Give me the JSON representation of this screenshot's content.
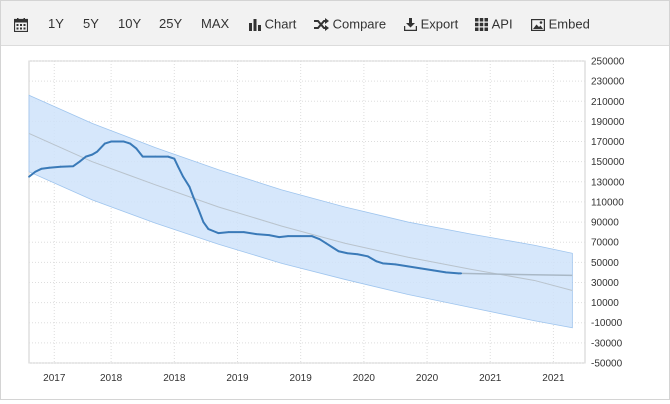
{
  "toolbar": {
    "calendar_icon": "calendar-icon",
    "ranges": [
      "1Y",
      "5Y",
      "10Y",
      "25Y",
      "MAX"
    ],
    "chart_label": "Chart",
    "compare_label": "Compare",
    "export_label": "Export",
    "api_label": "API",
    "embed_label": "Embed"
  },
  "colors": {
    "line": "#3a7ab8",
    "band": "#cfe3fa",
    "band_edge": "#9fc5ee",
    "forecast": "#a9b8c6",
    "trend": "#b9c3cc"
  },
  "chart_data": {
    "type": "line",
    "y_ticks": [
      -50000,
      -30000,
      -10000,
      10000,
      30000,
      50000,
      70000,
      90000,
      110000,
      130000,
      150000,
      170000,
      190000,
      210000,
      230000,
      250000
    ],
    "y_tick_labels": [
      "-50000",
      "-30000",
      "-10000",
      "10000",
      "30000",
      "50000",
      "70000",
      "90000",
      "110000",
      "130000",
      "150000",
      "170000",
      "190000",
      "210000",
      "230000",
      "250000"
    ],
    "ylim": [
      -50000,
      250000
    ],
    "xlim": [
      2016.7,
      2021.1
    ],
    "x_ticks": [
      2016.9,
      2017.35,
      2017.85,
      2018.35,
      2018.85,
      2019.35,
      2019.85,
      2020.35,
      2020.85
    ],
    "x_tick_labels": [
      "2017",
      "2018",
      "2018",
      "2019",
      "2019",
      "2020",
      "2020",
      "2021",
      "2021"
    ],
    "grid": true,
    "series": [
      {
        "values": [
          [
            2016.7,
            135000
          ],
          [
            2016.75,
            140000
          ],
          [
            2016.8,
            143000
          ],
          [
            2016.86,
            144000
          ],
          [
            2016.95,
            145000
          ],
          [
            2017.05,
            145500
          ],
          [
            2017.1,
            150000
          ],
          [
            2017.15,
            155000
          ],
          [
            2017.2,
            157000
          ],
          [
            2017.24,
            160000
          ],
          [
            2017.3,
            168000
          ],
          [
            2017.35,
            170000
          ],
          [
            2017.45,
            170000
          ],
          [
            2017.5,
            168000
          ],
          [
            2017.55,
            163000
          ],
          [
            2017.6,
            155000
          ],
          [
            2017.7,
            155000
          ],
          [
            2017.8,
            155000
          ],
          [
            2017.85,
            153000
          ],
          [
            2017.88,
            145000
          ],
          [
            2017.92,
            135000
          ],
          [
            2017.97,
            125000
          ],
          [
            2018.0,
            115000
          ],
          [
            2018.04,
            103000
          ],
          [
            2018.08,
            90000
          ],
          [
            2018.12,
            83000
          ],
          [
            2018.16,
            81000
          ],
          [
            2018.2,
            79000
          ],
          [
            2018.28,
            80000
          ],
          [
            2018.4,
            80000
          ],
          [
            2018.5,
            78000
          ],
          [
            2018.6,
            77000
          ],
          [
            2018.68,
            75000
          ],
          [
            2018.75,
            76000
          ],
          [
            2018.85,
            76000
          ],
          [
            2018.94,
            76000
          ],
          [
            2019.0,
            73000
          ],
          [
            2019.05,
            69000
          ],
          [
            2019.1,
            65000
          ],
          [
            2019.15,
            61000
          ],
          [
            2019.22,
            59000
          ],
          [
            2019.3,
            58000
          ],
          [
            2019.38,
            56000
          ],
          [
            2019.45,
            51000
          ],
          [
            2019.5,
            49000
          ],
          [
            2019.6,
            48000
          ],
          [
            2019.7,
            46000
          ],
          [
            2019.8,
            44000
          ],
          [
            2019.9,
            42000
          ],
          [
            2020.0,
            40000
          ],
          [
            2020.1,
            39000
          ],
          [
            2020.12,
            39000
          ]
        ]
      }
    ],
    "forecast": [
      [
        2020.12,
        39000
      ],
      [
        2020.5,
        38000
      ],
      [
        2021.0,
        37000
      ]
    ],
    "trend": [
      [
        2016.7,
        178000
      ],
      [
        2017.2,
        150000
      ],
      [
        2017.7,
        127000
      ],
      [
        2018.2,
        105000
      ],
      [
        2018.7,
        86000
      ],
      [
        2019.2,
        69000
      ],
      [
        2019.7,
        55000
      ],
      [
        2020.2,
        43000
      ],
      [
        2020.7,
        32000
      ],
      [
        2021.0,
        22000
      ]
    ],
    "band_upper": [
      [
        2016.7,
        216000
      ],
      [
        2017.2,
        188000
      ],
      [
        2017.7,
        164000
      ],
      [
        2018.2,
        142000
      ],
      [
        2018.7,
        122000
      ],
      [
        2019.2,
        105000
      ],
      [
        2019.7,
        90000
      ],
      [
        2020.2,
        78000
      ],
      [
        2020.7,
        67000
      ],
      [
        2021.0,
        59000
      ]
    ],
    "band_lower": [
      [
        2016.7,
        140000
      ],
      [
        2017.2,
        112000
      ],
      [
        2017.7,
        89000
      ],
      [
        2018.2,
        68000
      ],
      [
        2018.7,
        49000
      ],
      [
        2019.2,
        33000
      ],
      [
        2019.7,
        18000
      ],
      [
        2020.2,
        5000
      ],
      [
        2020.7,
        -8000
      ],
      [
        2021.0,
        -15000
      ]
    ]
  }
}
